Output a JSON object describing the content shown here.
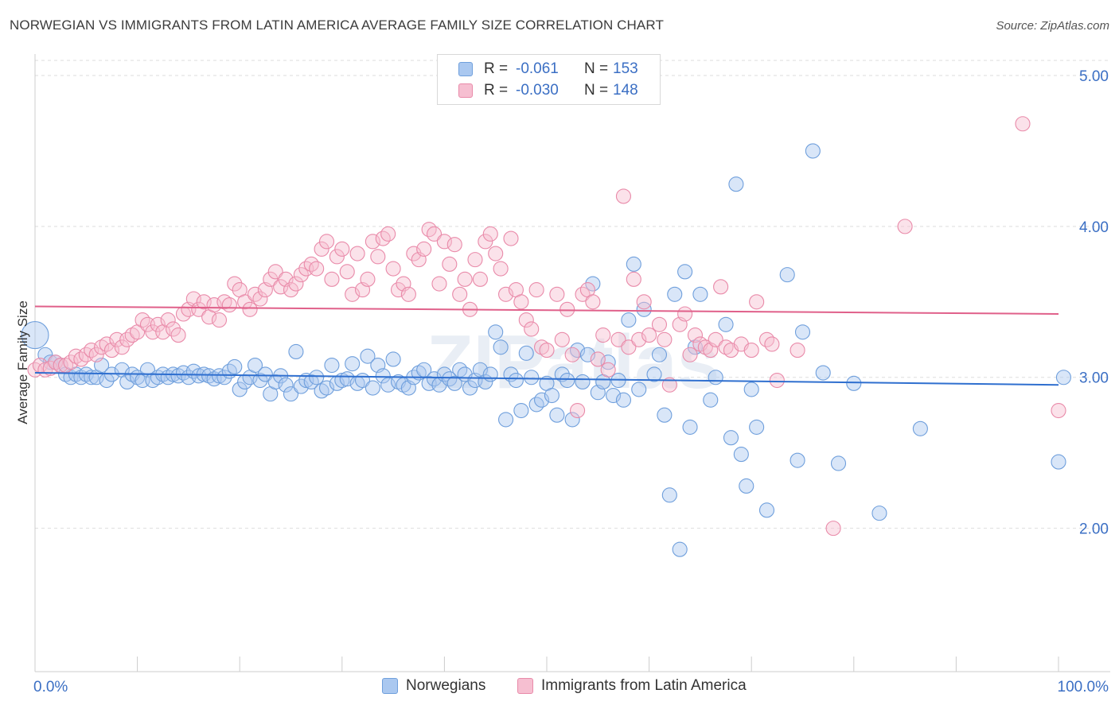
{
  "title": "NORWEGIAN VS IMMIGRANTS FROM LATIN AMERICA AVERAGE FAMILY SIZE CORRELATION CHART",
  "source": "Source: ZipAtlas.com",
  "watermark": "ZIPatlas",
  "legend": {
    "rows": [
      {
        "r_label": "R =",
        "r_value": "-0.061",
        "n_label": "N =",
        "n_value": "153"
      },
      {
        "r_label": "R =",
        "r_value": "-0.030",
        "n_label": "N =",
        "n_value": "148"
      }
    ]
  },
  "colors": {
    "blue_fill": "#aac8f0",
    "blue_stroke": "#6f9fdc",
    "blue_line": "#2f6fcf",
    "pink_fill": "#f6bfd1",
    "pink_stroke": "#e98aa9",
    "pink_line": "#e0608a",
    "tick_text": "#3b6fc4",
    "grid": "#dddddd"
  },
  "chart_data": {
    "type": "scatter",
    "title": "NORWEGIAN VS IMMIGRANTS FROM LATIN AMERICA AVERAGE FAMILY SIZE CORRELATION CHART",
    "xlabel": "",
    "ylabel": "Average Family Size",
    "xlim": [
      0,
      100
    ],
    "ylim": [
      1.05,
      5.1
    ],
    "x_tick_labels": [
      "0.0%",
      "100.0%"
    ],
    "y_ticks": [
      2.0,
      3.0,
      4.0,
      5.0
    ],
    "y_tick_labels": [
      "2.00",
      "3.00",
      "4.00",
      "5.00"
    ],
    "grid": "horizontal dashed",
    "legend_position": "top-center",
    "series": [
      {
        "name": "Norwegians",
        "color": "#aac8f0",
        "trend": {
          "x": [
            0,
            100
          ],
          "y": [
            3.03,
            2.95
          ]
        },
        "points": [
          [
            0.0,
            3.28
          ],
          [
            1.0,
            3.15
          ],
          [
            1.5,
            3.1
          ],
          [
            2.0,
            3.1
          ],
          [
            2.5,
            3.08
          ],
          [
            3.0,
            3.02
          ],
          [
            3.5,
            3.0
          ],
          [
            4.0,
            3.02
          ],
          [
            4.5,
            3.0
          ],
          [
            5.0,
            3.02
          ],
          [
            5.5,
            3.0
          ],
          [
            6.0,
            3.0
          ],
          [
            6.5,
            3.08
          ],
          [
            7.0,
            2.98
          ],
          [
            7.5,
            3.02
          ],
          [
            8.5,
            3.05
          ],
          [
            9.0,
            2.97
          ],
          [
            9.5,
            3.02
          ],
          [
            10.0,
            3.0
          ],
          [
            10.5,
            2.98
          ],
          [
            11.0,
            3.05
          ],
          [
            11.5,
            2.98
          ],
          [
            12.0,
            3.0
          ],
          [
            12.5,
            3.02
          ],
          [
            13.0,
            3.0
          ],
          [
            13.5,
            3.02
          ],
          [
            14.0,
            3.01
          ],
          [
            14.5,
            3.03
          ],
          [
            15.0,
            3.0
          ],
          [
            15.5,
            3.04
          ],
          [
            16.0,
            3.01
          ],
          [
            16.5,
            3.02
          ],
          [
            17.0,
            3.01
          ],
          [
            17.5,
            2.99
          ],
          [
            18.0,
            3.01
          ],
          [
            18.5,
            3.0
          ],
          [
            19.0,
            3.04
          ],
          [
            19.5,
            3.07
          ],
          [
            20.0,
            2.92
          ],
          [
            20.5,
            2.97
          ],
          [
            21.0,
            3.0
          ],
          [
            21.5,
            3.08
          ],
          [
            22.0,
            2.98
          ],
          [
            22.5,
            3.02
          ],
          [
            23.0,
            2.89
          ],
          [
            23.5,
            2.97
          ],
          [
            24.0,
            3.01
          ],
          [
            24.5,
            2.95
          ],
          [
            25.0,
            2.89
          ],
          [
            25.5,
            3.17
          ],
          [
            26.0,
            2.94
          ],
          [
            26.5,
            2.98
          ],
          [
            27.0,
            2.97
          ],
          [
            27.5,
            3.0
          ],
          [
            28.0,
            2.91
          ],
          [
            28.5,
            2.93
          ],
          [
            29.0,
            3.08
          ],
          [
            29.5,
            2.96
          ],
          [
            30.0,
            2.98
          ],
          [
            30.5,
            2.99
          ],
          [
            31.0,
            3.09
          ],
          [
            31.5,
            2.96
          ],
          [
            32.0,
            2.98
          ],
          [
            32.5,
            3.14
          ],
          [
            33.0,
            2.93
          ],
          [
            33.5,
            3.08
          ],
          [
            34.0,
            3.01
          ],
          [
            34.5,
            2.95
          ],
          [
            35.0,
            3.12
          ],
          [
            35.5,
            2.97
          ],
          [
            36.0,
            2.95
          ],
          [
            36.5,
            2.93
          ],
          [
            37.0,
            3.0
          ],
          [
            37.5,
            3.03
          ],
          [
            38.0,
            3.05
          ],
          [
            38.5,
            2.96
          ],
          [
            39.0,
            2.99
          ],
          [
            39.5,
            2.95
          ],
          [
            40.0,
            3.02
          ],
          [
            40.5,
            2.99
          ],
          [
            41.0,
            2.96
          ],
          [
            41.5,
            3.05
          ],
          [
            42.0,
            3.02
          ],
          [
            42.5,
            2.93
          ],
          [
            43.0,
            2.98
          ],
          [
            43.5,
            3.05
          ],
          [
            44.0,
            2.97
          ],
          [
            44.5,
            3.02
          ],
          [
            45.0,
            3.3
          ],
          [
            45.5,
            3.2
          ],
          [
            46.0,
            2.72
          ],
          [
            46.5,
            3.02
          ],
          [
            47.0,
            2.98
          ],
          [
            47.5,
            2.78
          ],
          [
            48.0,
            3.16
          ],
          [
            48.5,
            3.0
          ],
          [
            49.0,
            2.82
          ],
          [
            49.5,
            2.85
          ],
          [
            50.0,
            2.96
          ],
          [
            50.5,
            2.88
          ],
          [
            51.0,
            2.75
          ],
          [
            51.5,
            3.02
          ],
          [
            52.0,
            2.98
          ],
          [
            52.5,
            2.72
          ],
          [
            53.0,
            3.18
          ],
          [
            53.5,
            2.97
          ],
          [
            54.0,
            3.15
          ],
          [
            54.5,
            3.62
          ],
          [
            55.0,
            2.9
          ],
          [
            55.5,
            2.97
          ],
          [
            56.0,
            3.1
          ],
          [
            56.5,
            2.88
          ],
          [
            57.0,
            2.98
          ],
          [
            57.5,
            2.85
          ],
          [
            58.0,
            3.38
          ],
          [
            58.5,
            3.75
          ],
          [
            59.0,
            2.92
          ],
          [
            59.5,
            3.45
          ],
          [
            60.5,
            3.02
          ],
          [
            61.0,
            3.15
          ],
          [
            61.5,
            2.75
          ],
          [
            62.0,
            2.22
          ],
          [
            62.5,
            3.55
          ],
          [
            63.0,
            1.86
          ],
          [
            63.5,
            3.7
          ],
          [
            64.0,
            2.67
          ],
          [
            64.5,
            3.2
          ],
          [
            65.0,
            3.55
          ],
          [
            66.0,
            2.85
          ],
          [
            66.5,
            3.0
          ],
          [
            67.5,
            3.35
          ],
          [
            68.0,
            2.6
          ],
          [
            68.5,
            4.28
          ],
          [
            69.0,
            2.49
          ],
          [
            69.5,
            2.28
          ],
          [
            70.0,
            2.92
          ],
          [
            70.5,
            2.67
          ],
          [
            71.5,
            2.12
          ],
          [
            73.5,
            3.68
          ],
          [
            74.5,
            2.45
          ],
          [
            75.0,
            3.3
          ],
          [
            76.0,
            4.5
          ],
          [
            77.0,
            3.03
          ],
          [
            78.5,
            2.43
          ],
          [
            80.0,
            2.96
          ],
          [
            82.5,
            2.1
          ],
          [
            86.5,
            2.66
          ],
          [
            100.0,
            2.44
          ],
          [
            100.5,
            3.0
          ]
        ]
      },
      {
        "name": "Immigrants from Latin America",
        "color": "#f6bfd1",
        "trend": {
          "x": [
            0,
            100
          ],
          "y": [
            3.47,
            3.42
          ]
        },
        "points": [
          [
            0.0,
            3.05
          ],
          [
            0.5,
            3.08
          ],
          [
            1.0,
            3.05
          ],
          [
            1.5,
            3.06
          ],
          [
            2.0,
            3.1
          ],
          [
            2.5,
            3.08
          ],
          [
            3.0,
            3.08
          ],
          [
            3.5,
            3.1
          ],
          [
            4.0,
            3.14
          ],
          [
            4.5,
            3.12
          ],
          [
            5.0,
            3.15
          ],
          [
            5.5,
            3.18
          ],
          [
            6.0,
            3.15
          ],
          [
            6.5,
            3.2
          ],
          [
            7.0,
            3.22
          ],
          [
            7.5,
            3.18
          ],
          [
            8.0,
            3.25
          ],
          [
            8.5,
            3.2
          ],
          [
            9.0,
            3.25
          ],
          [
            9.5,
            3.28
          ],
          [
            10.0,
            3.3
          ],
          [
            10.5,
            3.38
          ],
          [
            11.0,
            3.35
          ],
          [
            11.5,
            3.3
          ],
          [
            12.0,
            3.35
          ],
          [
            12.5,
            3.3
          ],
          [
            13.0,
            3.38
          ],
          [
            13.5,
            3.32
          ],
          [
            14.0,
            3.28
          ],
          [
            14.5,
            3.42
          ],
          [
            15.0,
            3.45
          ],
          [
            15.5,
            3.52
          ],
          [
            16.0,
            3.45
          ],
          [
            16.5,
            3.5
          ],
          [
            17.0,
            3.4
          ],
          [
            17.5,
            3.48
          ],
          [
            18.0,
            3.38
          ],
          [
            18.5,
            3.5
          ],
          [
            19.0,
            3.48
          ],
          [
            19.5,
            3.62
          ],
          [
            20.0,
            3.58
          ],
          [
            20.5,
            3.5
          ],
          [
            21.0,
            3.45
          ],
          [
            21.5,
            3.55
          ],
          [
            22.0,
            3.52
          ],
          [
            22.5,
            3.58
          ],
          [
            23.0,
            3.65
          ],
          [
            23.5,
            3.7
          ],
          [
            24.0,
            3.6
          ],
          [
            24.5,
            3.65
          ],
          [
            25.0,
            3.58
          ],
          [
            25.5,
            3.62
          ],
          [
            26.0,
            3.68
          ],
          [
            26.5,
            3.72
          ],
          [
            27.0,
            3.75
          ],
          [
            27.5,
            3.72
          ],
          [
            28.0,
            3.85
          ],
          [
            28.5,
            3.9
          ],
          [
            29.0,
            3.65
          ],
          [
            29.5,
            3.8
          ],
          [
            30.0,
            3.85
          ],
          [
            30.5,
            3.7
          ],
          [
            31.0,
            3.55
          ],
          [
            31.5,
            3.82
          ],
          [
            32.0,
            3.58
          ],
          [
            32.5,
            3.65
          ],
          [
            33.0,
            3.9
          ],
          [
            33.5,
            3.8
          ],
          [
            34.0,
            3.92
          ],
          [
            34.5,
            3.95
          ],
          [
            35.0,
            3.72
          ],
          [
            35.5,
            3.58
          ],
          [
            36.0,
            3.62
          ],
          [
            36.5,
            3.55
          ],
          [
            37.0,
            3.82
          ],
          [
            37.5,
            3.78
          ],
          [
            38.0,
            3.85
          ],
          [
            38.5,
            3.98
          ],
          [
            39.0,
            3.95
          ],
          [
            39.5,
            3.62
          ],
          [
            40.0,
            3.9
          ],
          [
            40.5,
            3.75
          ],
          [
            41.0,
            3.88
          ],
          [
            41.5,
            3.55
          ],
          [
            42.0,
            3.65
          ],
          [
            42.5,
            3.45
          ],
          [
            43.0,
            3.78
          ],
          [
            43.5,
            3.65
          ],
          [
            44.0,
            3.9
          ],
          [
            44.5,
            3.95
          ],
          [
            45.0,
            3.82
          ],
          [
            45.5,
            3.72
          ],
          [
            46.0,
            3.55
          ],
          [
            46.5,
            3.92
          ],
          [
            47.0,
            3.58
          ],
          [
            47.5,
            3.5
          ],
          [
            48.0,
            3.38
          ],
          [
            48.5,
            3.32
          ],
          [
            49.0,
            3.58
          ],
          [
            49.5,
            3.2
          ],
          [
            50.0,
            3.18
          ],
          [
            51.0,
            3.55
          ],
          [
            51.5,
            3.25
          ],
          [
            52.0,
            3.45
          ],
          [
            52.5,
            3.15
          ],
          [
            53.0,
            2.78
          ],
          [
            53.5,
            3.55
          ],
          [
            54.0,
            3.58
          ],
          [
            54.5,
            3.5
          ],
          [
            55.0,
            3.12
          ],
          [
            55.5,
            3.28
          ],
          [
            56.0,
            3.05
          ],
          [
            57.0,
            3.25
          ],
          [
            57.5,
            4.2
          ],
          [
            58.0,
            3.2
          ],
          [
            58.5,
            3.65
          ],
          [
            59.0,
            3.25
          ],
          [
            59.5,
            3.5
          ],
          [
            60.0,
            3.28
          ],
          [
            61.0,
            3.35
          ],
          [
            61.5,
            3.25
          ],
          [
            62.0,
            2.95
          ],
          [
            63.0,
            3.35
          ],
          [
            63.5,
            3.42
          ],
          [
            64.0,
            3.15
          ],
          [
            64.5,
            3.28
          ],
          [
            65.0,
            3.22
          ],
          [
            65.5,
            3.2
          ],
          [
            66.0,
            3.18
          ],
          [
            66.5,
            3.25
          ],
          [
            67.0,
            3.6
          ],
          [
            67.5,
            3.2
          ],
          [
            68.0,
            3.18
          ],
          [
            69.0,
            3.22
          ],
          [
            70.0,
            3.18
          ],
          [
            70.5,
            3.5
          ],
          [
            71.5,
            3.25
          ],
          [
            72.0,
            3.22
          ],
          [
            72.5,
            2.98
          ],
          [
            74.5,
            3.18
          ],
          [
            78.0,
            2.0
          ],
          [
            85.0,
            4.0
          ],
          [
            96.5,
            4.68
          ],
          [
            100.0,
            2.78
          ]
        ]
      }
    ]
  }
}
